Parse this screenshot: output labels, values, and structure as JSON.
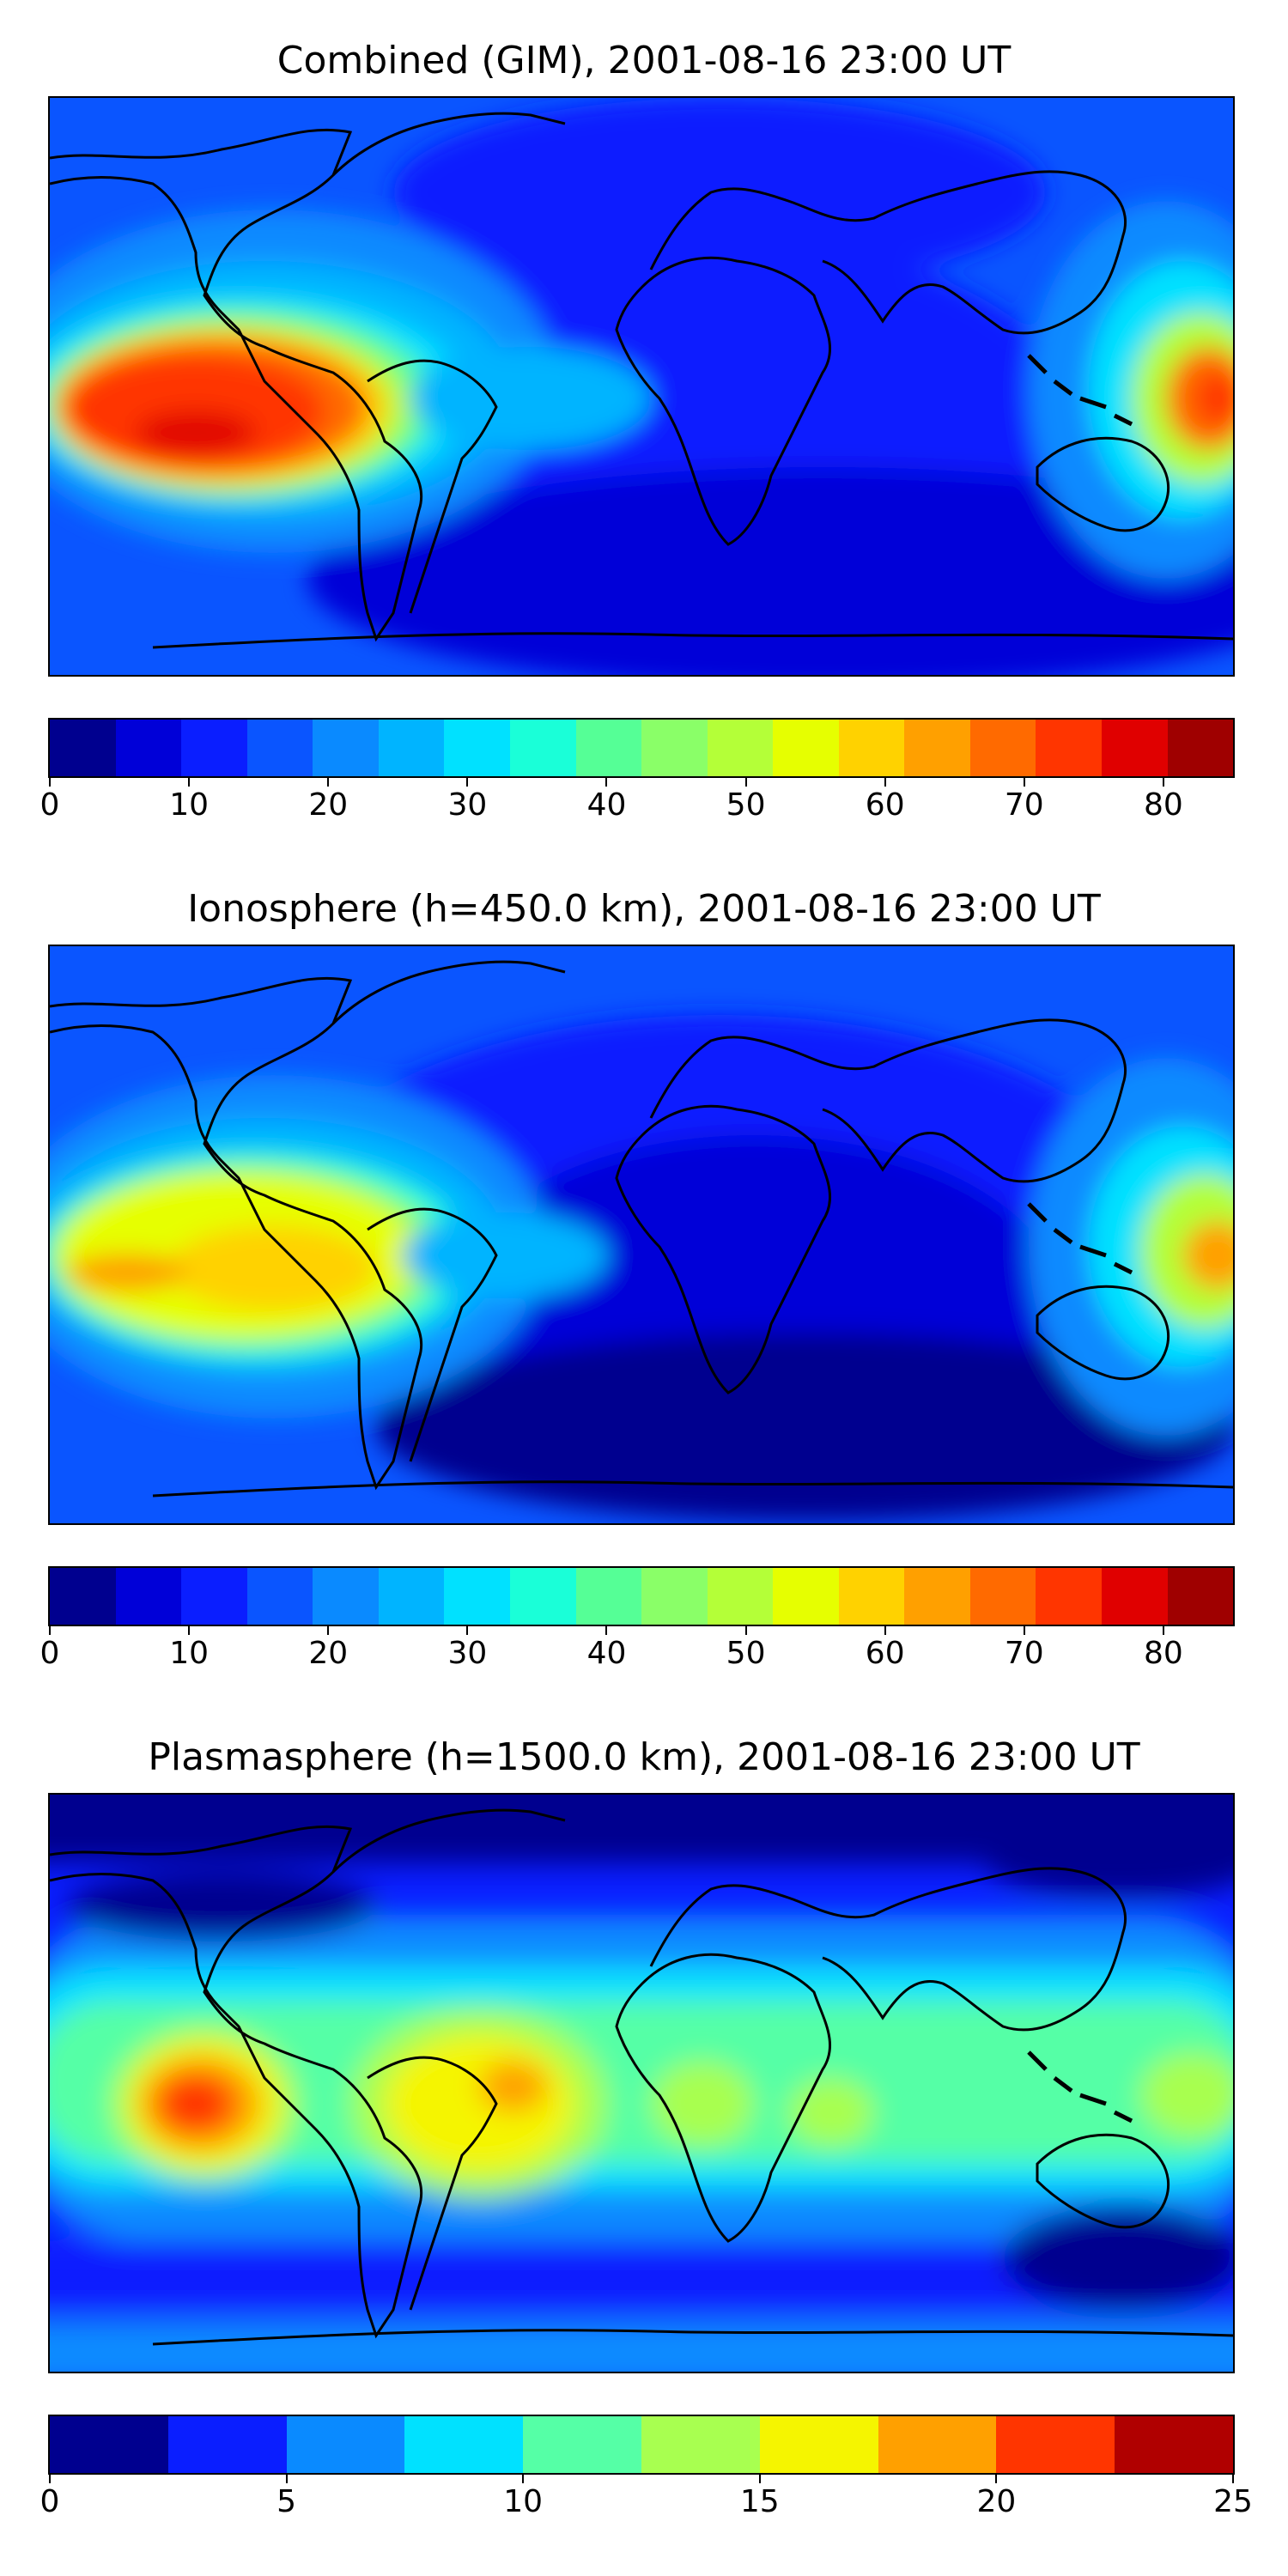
{
  "panels": [
    {
      "title": "Combined (GIM), 2001-08-16 23:00 UT",
      "colorbar": {
        "colors": [
          "#00008f",
          "#0000d8",
          "#0a1eff",
          "#0a55ff",
          "#0a8aff",
          "#00b4ff",
          "#00e1ff",
          "#1affd8",
          "#55ff96",
          "#8aff68",
          "#b4ff38",
          "#e6ff00",
          "#ffd200",
          "#ffa000",
          "#ff6a00",
          "#ff3500",
          "#e00000",
          "#9f0000"
        ],
        "tick_labels": [
          "0",
          "10",
          "20",
          "30",
          "40",
          "50",
          "60",
          "70",
          "80"
        ],
        "tick_values": [
          0,
          10,
          20,
          30,
          40,
          50,
          60,
          70,
          80
        ],
        "range": [
          0,
          85
        ]
      },
      "field_features": [
        {
          "region": "eastern Pacific equatorial",
          "level": "80"
        },
        {
          "region": "western Pacific equatorial",
          "level": "70"
        },
        {
          "region": "Indian Ocean / Africa south",
          "level": "10"
        }
      ]
    },
    {
      "title": "Ionosphere  (h=450.0 km), 2001-08-16 23:00 UT",
      "colorbar": {
        "colors": [
          "#00008f",
          "#0000d8",
          "#0a1eff",
          "#0a55ff",
          "#0a8aff",
          "#00b4ff",
          "#00e1ff",
          "#1affd8",
          "#55ff96",
          "#8aff68",
          "#b4ff38",
          "#e6ff00",
          "#ffd200",
          "#ffa000",
          "#ff6a00",
          "#ff3500",
          "#e00000",
          "#9f0000"
        ],
        "tick_labels": [
          "0",
          "10",
          "20",
          "30",
          "40",
          "50",
          "60",
          "70",
          "80"
        ],
        "tick_values": [
          0,
          10,
          20,
          30,
          40,
          50,
          60,
          70,
          80
        ],
        "range": [
          0,
          85
        ]
      },
      "field_features": [
        {
          "region": "eastern Pacific equatorial",
          "level": "60"
        },
        {
          "region": "western Pacific equatorial",
          "level": "65"
        },
        {
          "region": "Indian Ocean / Africa south",
          "level": "5"
        }
      ]
    },
    {
      "title": "Plasmasphere (h=1500.0 km), 2001-08-16 23:00 UT",
      "colorbar": {
        "colors": [
          "#00008f",
          "#0a1eff",
          "#0a8aff",
          "#00e1ff",
          "#55ffa6",
          "#a8ff50",
          "#f5f500",
          "#ffa000",
          "#ff3500",
          "#b00000"
        ],
        "tick_labels": [
          "0",
          "5",
          "10",
          "15",
          "20",
          "25"
        ],
        "tick_values": [
          0,
          5,
          10,
          15,
          20,
          25
        ],
        "range": [
          0,
          25
        ]
      },
      "field_features": [
        {
          "region": "eastern Pacific",
          "level": "20"
        },
        {
          "region": "South America",
          "level": "17.5"
        },
        {
          "region": "polar",
          "level": "2.5"
        }
      ]
    }
  ]
}
